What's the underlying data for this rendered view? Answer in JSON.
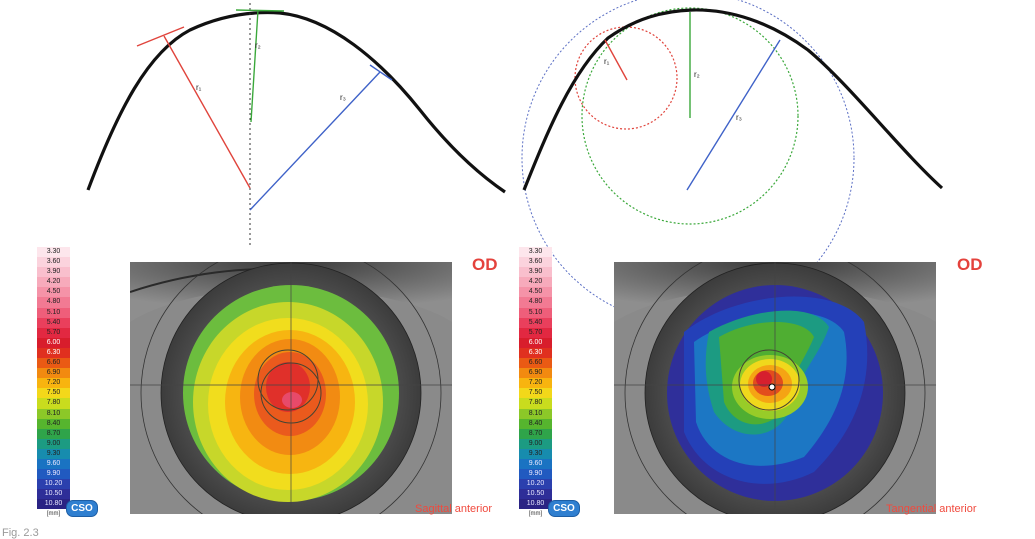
{
  "colors": {
    "od_text": "#e4423c",
    "map_label_text": "#f04a3e",
    "radius_red": "#e0443c",
    "radius_green": "#3aa83a",
    "radius_blue": "#3f62c8",
    "circle_blue": "#5b6fc4"
  },
  "top_left_diagram": {
    "radius_labels": [
      "r₁",
      "r₂",
      "r₃"
    ]
  },
  "top_right_diagram": {
    "radius_labels": [
      "r₁",
      "r₂",
      "r₃"
    ]
  },
  "left_panel": {
    "eye_label": "OD",
    "map_label": "Sagittal anterior",
    "logo_text": "CSO",
    "scale_unit": "[mm]",
    "scale_values": [
      "3.30",
      "3.60",
      "3.90",
      "4.20",
      "4.50",
      "4.80",
      "5.10",
      "5.40",
      "5.70",
      "6.00",
      "6.30",
      "6.60",
      "6.90",
      "7.20",
      "7.50",
      "7.80",
      "8.10",
      "8.40",
      "8.70",
      "9.00",
      "9.30",
      "9.60",
      "9.90",
      "10.20",
      "10.50",
      "10.80"
    ]
  },
  "right_panel": {
    "eye_label": "OD",
    "map_label": "Tangential anterior",
    "logo_text": "CSO",
    "scale_unit": "[mm]",
    "scale_values": [
      "3.30",
      "3.60",
      "3.90",
      "4.20",
      "4.50",
      "4.80",
      "5.10",
      "5.40",
      "5.70",
      "6.00",
      "6.30",
      "6.60",
      "6.90",
      "7.20",
      "7.50",
      "7.80",
      "8.10",
      "8.40",
      "8.70",
      "9.00",
      "9.30",
      "9.60",
      "9.90",
      "10.20",
      "10.50",
      "10.80"
    ]
  },
  "scale_colors": [
    "#fde6ec",
    "#fbd3dd",
    "#f9bfcd",
    "#f7aabb",
    "#f593a8",
    "#f27a93",
    "#ef5e7a",
    "#ea3f5c",
    "#e22841",
    "#d81d2c",
    "#e0301f",
    "#ea5a14",
    "#f28a10",
    "#f8b40f",
    "#f3d81a",
    "#c9dc1e",
    "#8cc828",
    "#56b52e",
    "#2fa44a",
    "#1c9b82",
    "#178cae",
    "#1a73c2",
    "#215ac0",
    "#2b40ae",
    "#2e2e98",
    "#2a2384"
  ],
  "caption": "Fig. 2.3"
}
